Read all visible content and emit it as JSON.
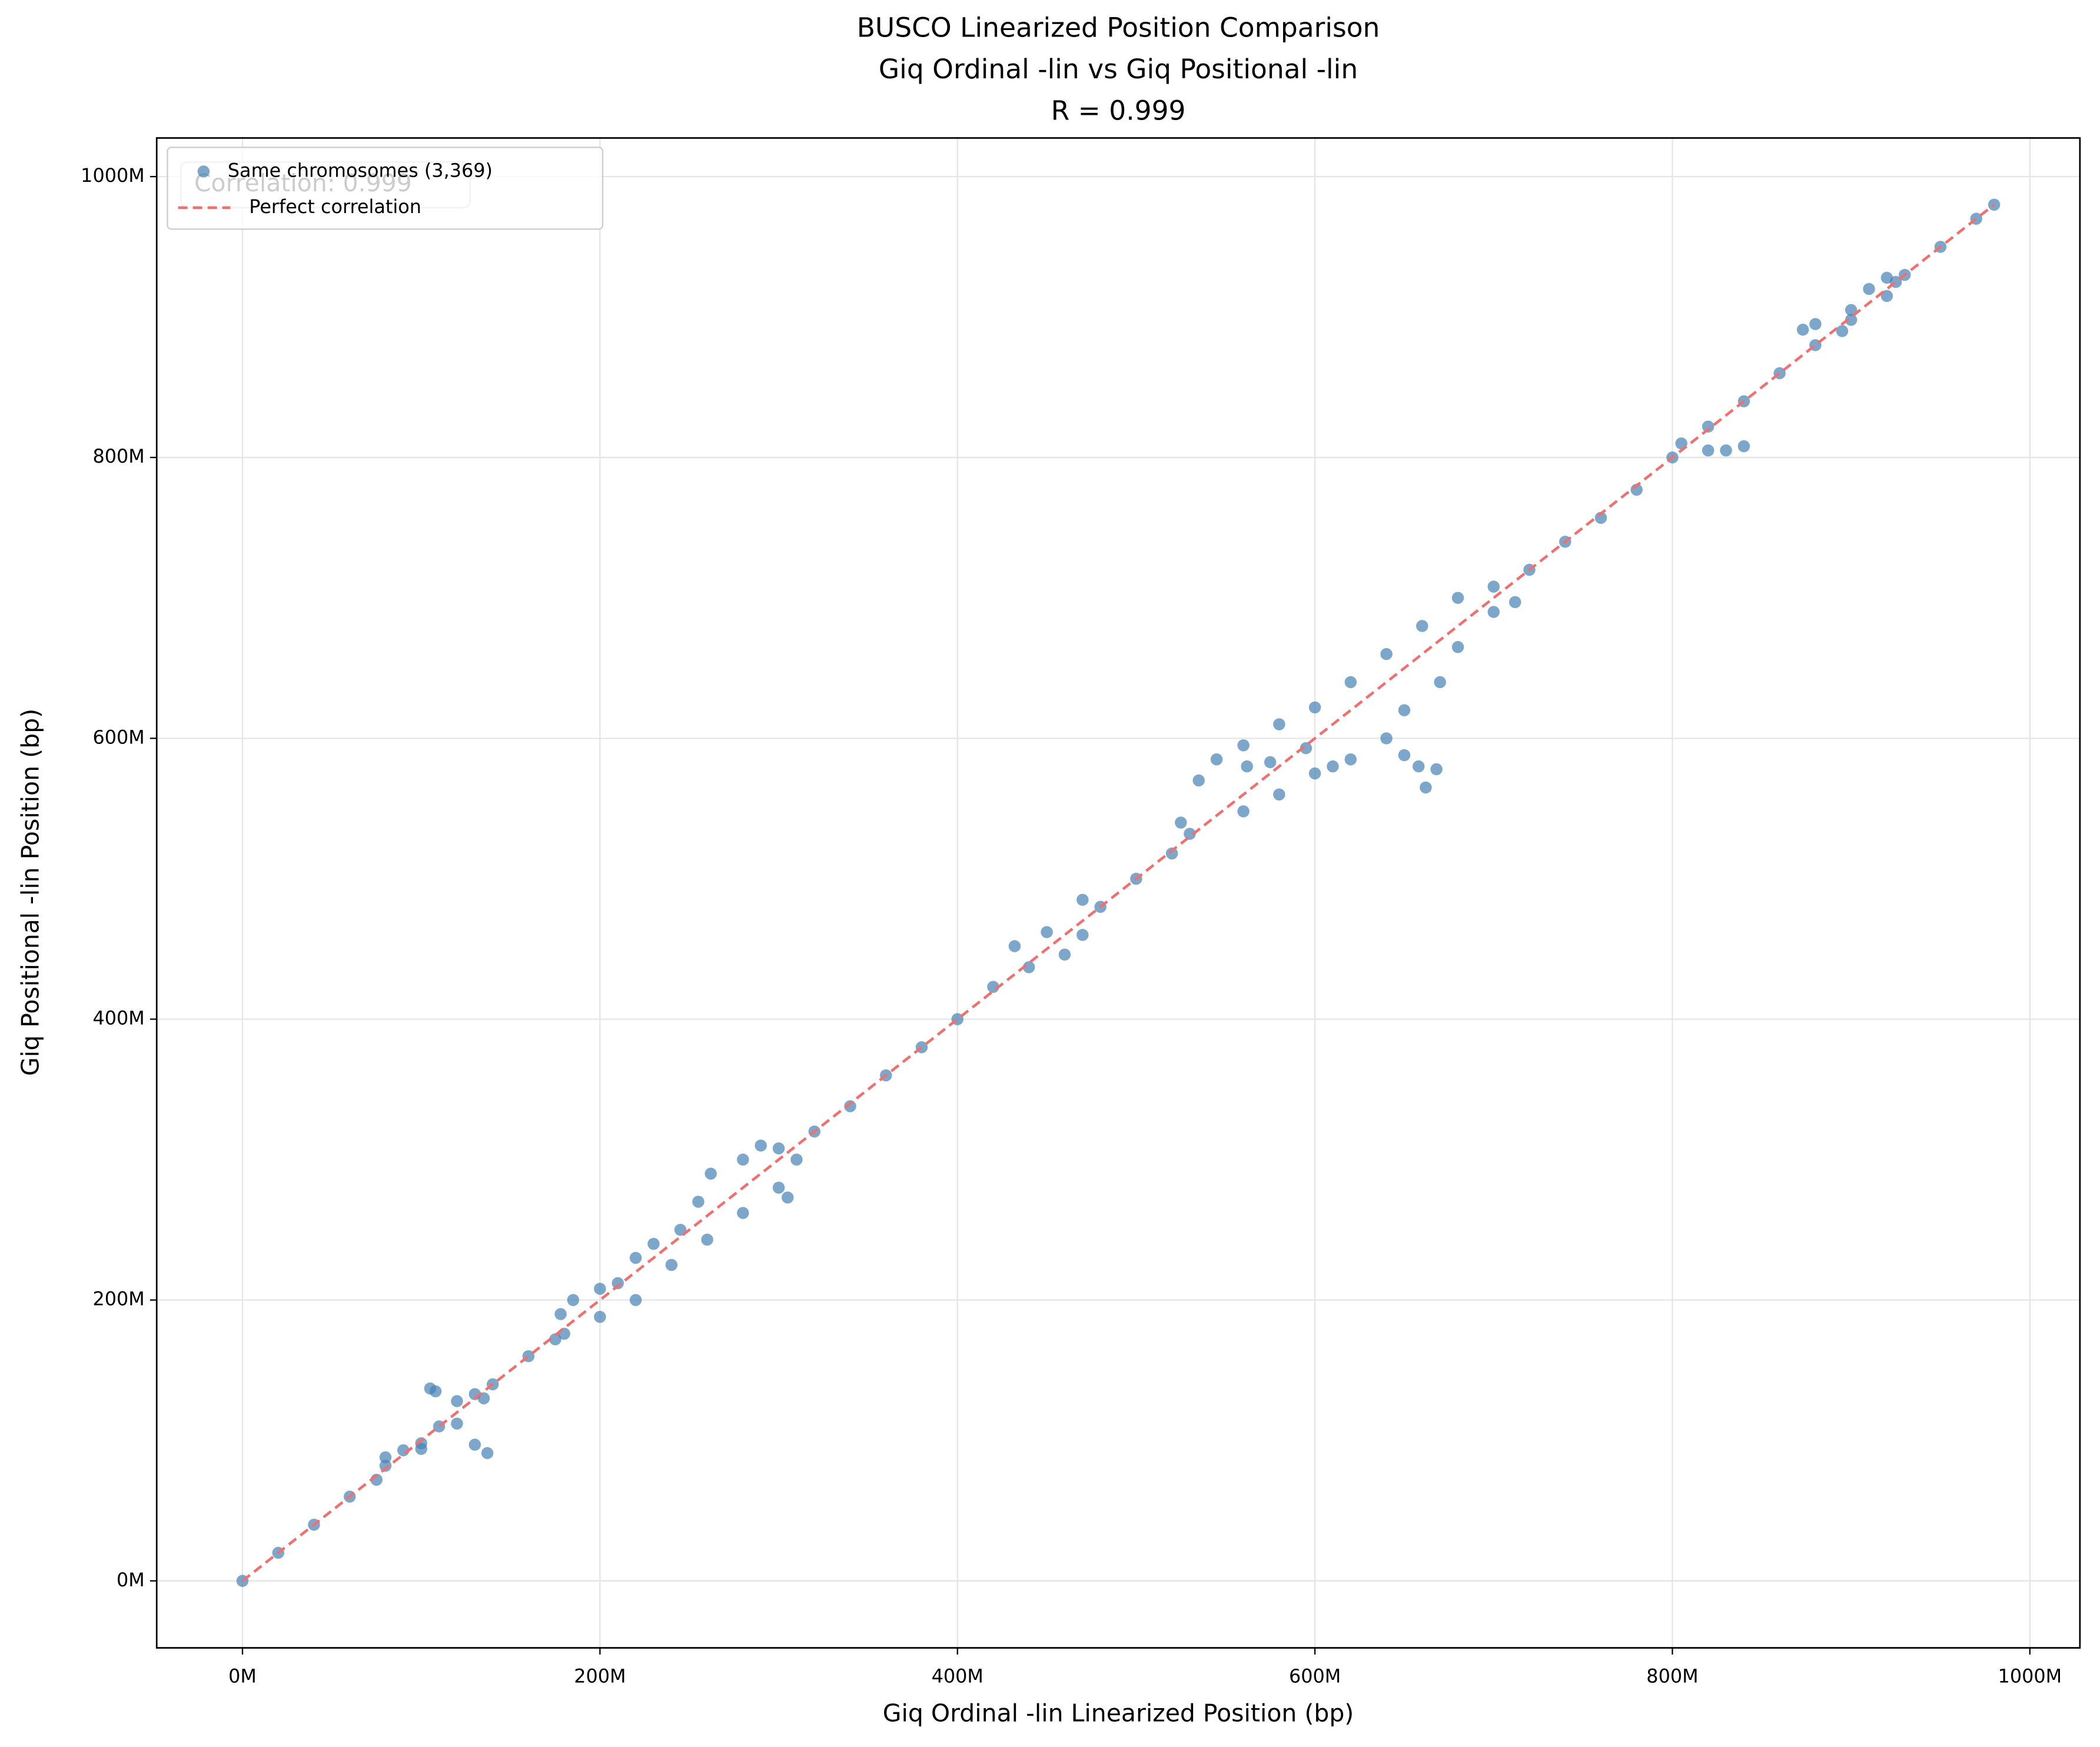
{
  "chart_data": {
    "type": "scatter",
    "title": [
      "BUSCO Linearized Position Comparison",
      "Giq Ordinal -lin vs Giq Positional -lin",
      "R = 0.999"
    ],
    "x_label": "Giq Ordinal -lin Linearized Position (bp)",
    "y_label": "Giq Positional -lin Position (bp)",
    "annotation": "Correlation: 0.999",
    "xlim": [
      -48000000.0,
      1028000000.0
    ],
    "ylim": [
      -47700000.0,
      1027500000.0
    ],
    "xticks": [
      {
        "value": 0,
        "label": "0M"
      },
      {
        "value": 200000000.0,
        "label": "200M"
      },
      {
        "value": 400000000.0,
        "label": "400M"
      },
      {
        "value": 600000000.0,
        "label": "600M"
      },
      {
        "value": 800000000.0,
        "label": "800M"
      },
      {
        "value": 1000000000.0,
        "label": "1000M"
      }
    ],
    "yticks": [
      {
        "value": 0,
        "label": "0M"
      },
      {
        "value": 200000000.0,
        "label": "200M"
      },
      {
        "value": 400000000.0,
        "label": "400M"
      },
      {
        "value": 600000000.0,
        "label": "600M"
      },
      {
        "value": 800000000.0,
        "label": "800M"
      },
      {
        "value": 1000000000.0,
        "label": "1000M"
      }
    ],
    "grid": true,
    "legend": "upper left",
    "series": [
      {
        "name": "Same chromosomes (3,369)",
        "color": "#4682b4",
        "x": [
          0,
          20000000.0,
          40000000.0,
          60000000.0,
          75000000.0,
          80000000.0,
          90000000.0,
          100000000.0,
          110000000.0,
          120000000.0,
          130000000.0,
          140000000.0,
          160000000.0,
          175000000.0,
          178000000.0,
          185000000.0,
          200000000.0,
          210000000.0,
          220000000.0,
          230000000.0,
          245000000.0,
          255000000.0,
          262000000.0,
          280000000.0,
          300000000.0,
          320000000.0,
          340000000.0,
          360000000.0,
          380000000.0,
          400000000.0,
          420000000.0,
          440000000.0,
          460000000.0,
          470000000.0,
          480000000.0,
          500000000.0,
          520000000.0,
          525000000.0,
          535000000.0,
          545000000.0,
          560000000.0,
          580000000.0,
          600000000.0,
          620000000.0,
          640000000.0,
          660000000.0,
          680000000.0,
          700000000.0,
          720000000.0,
          740000000.0,
          760000000.0,
          780000000.0,
          800000000.0,
          805000000.0,
          820000000.0,
          840000000.0,
          860000000.0,
          880000000.0,
          895000000.0,
          900000000.0,
          910000000.0,
          920000000.0,
          930000000.0,
          950000000.0,
          970000000.0,
          980000000.0,
          80000000.0,
          100000000.0,
          120000000.0,
          135000000.0,
          180000000.0,
          200000000.0,
          220000000.0,
          240000000.0,
          260000000.0,
          280000000.0,
          300000000.0,
          310000000.0,
          432000000.0,
          450000000.0,
          470000000.0,
          530000000.0,
          560000000.0,
          580000000.0,
          600000000.0,
          610000000.0,
          620000000.0,
          640000000.0,
          650000000.0,
          670000000.0,
          680000000.0,
          700000000.0,
          712000000.0,
          820000000.0,
          840000000.0,
          880000000.0,
          900000000.0,
          920000000.0,
          925000000.0,
          105000000.0,
          108000000.0,
          130000000.0,
          137000000.0,
          290000000.0,
          305000000.0,
          575000000.0,
          595000000.0,
          650000000.0,
          658000000.0,
          662000000.0,
          668000000.0,
          562000000.0,
          873000000.0,
          830000000.0
        ],
        "values": [
          0,
          20000000.0,
          40000000.0,
          60000000.0,
          72000000.0,
          88000000.0,
          93000000.0,
          98000000.0,
          110000000.0,
          128000000.0,
          133000000.0,
          140000000.0,
          160000000.0,
          172000000.0,
          190000000.0,
          200000000.0,
          208000000.0,
          212000000.0,
          230000000.0,
          240000000.0,
          250000000.0,
          270000000.0,
          290000000.0,
          300000000.0,
          308000000.0,
          320000000.0,
          338000000.0,
          360000000.0,
          380000000.0,
          400000000.0,
          423000000.0,
          437000000.0,
          446000000.0,
          460000000.0,
          480000000.0,
          500000000.0,
          518000000.0,
          540000000.0,
          570000000.0,
          585000000.0,
          595000000.0,
          610000000.0,
          622000000.0,
          640000000.0,
          660000000.0,
          680000000.0,
          700000000.0,
          708000000.0,
          720000000.0,
          740000000.0,
          757000000.0,
          777000000.0,
          800000000.0,
          810000000.0,
          822000000.0,
          840000000.0,
          860000000.0,
          880000000.0,
          890000000.0,
          905000000.0,
          920000000.0,
          928000000.0,
          930000000.0,
          950000000.0,
          970000000.0,
          980000000.0,
          82000000.0,
          94000000.0,
          112000000.0,
          130000000.0,
          176000000.0,
          188000000.0,
          200000000.0,
          225000000.0,
          243000000.0,
          262000000.0,
          280000000.0,
          300000000.0,
          452000000.0,
          462000000.0,
          485000000.0,
          532000000.0,
          548000000.0,
          560000000.0,
          575000000.0,
          580000000.0,
          585000000.0,
          600000000.0,
          620000000.0,
          640000000.0,
          665000000.0,
          690000000.0,
          697000000.0,
          805000000.0,
          808000000.0,
          895000000.0,
          898000000.0,
          915000000.0,
          925000000.0,
          137000000.0,
          135000000.0,
          97000000.0,
          91000000.0,
          310000000.0,
          273000000.0,
          583000000.0,
          593000000.0,
          588000000.0,
          580000000.0,
          565000000.0,
          578000000.0,
          580000000.0,
          891000000.0,
          805000000.0
        ]
      }
    ],
    "reference_line": {
      "name": "Perfect correlation",
      "color": "#f07070",
      "x": [
        0,
        980000000.0
      ],
      "values": [
        0,
        980000000.0
      ]
    }
  }
}
